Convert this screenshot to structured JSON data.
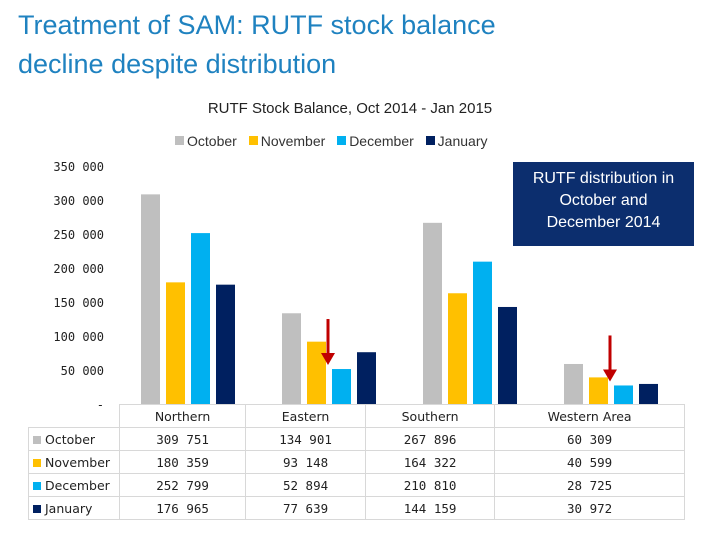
{
  "slide": {
    "title_line1": "Treatment of SAM: RUTF stock balance",
    "title_line2": "decline despite distribution"
  },
  "callout": {
    "line1": "RUTF distribution in",
    "line2": "October and",
    "line3": "December 2014"
  },
  "colors": {
    "October": "#bfbfbf",
    "November": "#ffc000",
    "December": "#00b0f0",
    "January": "#002060",
    "arrow": "#c00000"
  },
  "chart_data": {
    "type": "bar",
    "title": "RUTF Stock Balance, Oct 2014 - Jan 2015",
    "categories": [
      "Northern",
      "Eastern",
      "Southern",
      "Western Area"
    ],
    "series": [
      {
        "name": "October",
        "values": [
          309751,
          134901,
          267896,
          60309
        ],
        "labels": [
          "309 751",
          "134 901",
          "267 896",
          "60 309"
        ]
      },
      {
        "name": "November",
        "values": [
          180359,
          93148,
          164322,
          40599
        ],
        "labels": [
          "180 359",
          "93 148",
          "164 322",
          "40 599"
        ]
      },
      {
        "name": "December",
        "values": [
          252799,
          52894,
          210810,
          28725
        ],
        "labels": [
          "252 799",
          "52 894",
          "210 810",
          "28 725"
        ]
      },
      {
        "name": "January",
        "values": [
          176965,
          77639,
          144159,
          30972
        ],
        "labels": [
          "176 965",
          "77 639",
          "144 159",
          "30 972"
        ]
      }
    ],
    "ylim": [
      0,
      350000
    ],
    "yticks": [
      0,
      50000,
      100000,
      150000,
      200000,
      250000,
      300000,
      350000
    ],
    "ytick_labels": [
      "-",
      "50 000",
      "100 000",
      "150 000",
      "200 000",
      "250 000",
      "300 000",
      "350 000"
    ],
    "legend_position": "top",
    "grid": false,
    "annotations": [
      {
        "type": "arrow",
        "category": "Eastern",
        "series": "December"
      },
      {
        "type": "arrow",
        "category": "Western Area",
        "series": "December"
      }
    ]
  }
}
